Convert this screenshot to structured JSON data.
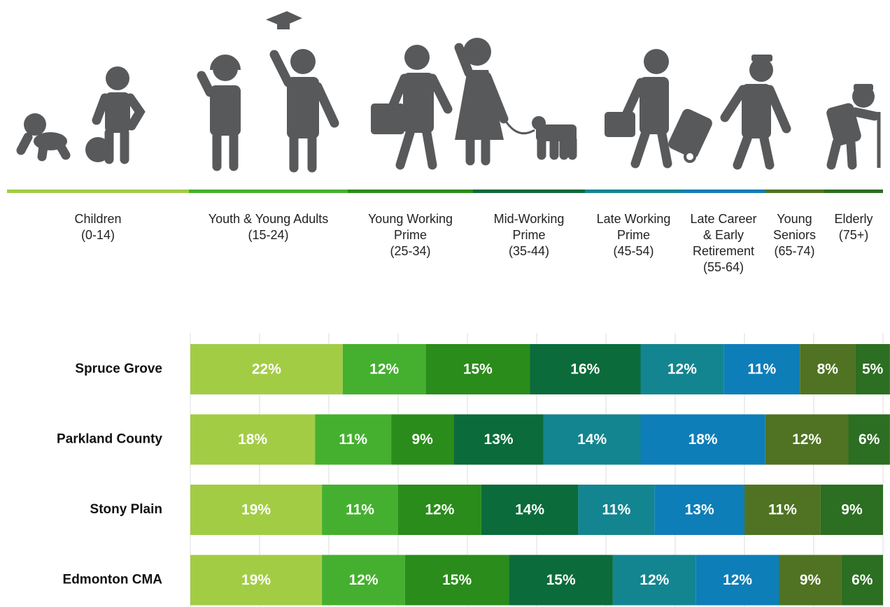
{
  "chart_data": {
    "type": "stacked_bar_horizontal",
    "categories": [
      "Spruce Grove",
      "Parkland County",
      "Stony Plain",
      "Edmonton CMA"
    ],
    "series": [
      {
        "name": "Children\n(0-14)",
        "color": "#a3cc45",
        "values": [
          22,
          18,
          19,
          19
        ],
        "value_labels": [
          "22%",
          "18%",
          "19%",
          "19%"
        ]
      },
      {
        "name": "Youth & Young Adults\n(15-24)",
        "color": "#45b02f",
        "values": [
          12,
          11,
          11,
          12
        ],
        "value_labels": [
          "12%",
          "11%",
          "11%",
          "12%"
        ]
      },
      {
        "name": "Young Working\nPrime\n(25-34)",
        "color": "#2a8c1a",
        "values": [
          15,
          9,
          12,
          15
        ],
        "value_labels": [
          "15%",
          "9%",
          "12%",
          "15%"
        ]
      },
      {
        "name": "Mid-Working\nPrime\n(35-44)",
        "color": "#0b6b3a",
        "values": [
          16,
          13,
          14,
          15
        ],
        "value_labels": [
          "16%",
          "13%",
          "14%",
          "15%"
        ]
      },
      {
        "name": "Late Working\nPrime\n(45-54)",
        "color": "#138590",
        "values": [
          12,
          14,
          11,
          12
        ],
        "value_labels": [
          "12%",
          "14%",
          "11%",
          "12%"
        ]
      },
      {
        "name": "Late Career\n& Early\nRetirement\n(55-64)",
        "color": "#0e7eb8",
        "values": [
          11,
          18,
          13,
          12
        ],
        "value_labels": [
          "11%",
          "18%",
          "13%",
          "12%"
        ]
      },
      {
        "name": "Young\nSeniors\n(65-74)",
        "color": "#4f7322",
        "values": [
          8,
          12,
          11,
          9
        ],
        "value_labels": [
          "8%",
          "12%",
          "11%",
          "9%"
        ]
      },
      {
        "name": "Elderly\n(75+)",
        "color": "#2c6e22",
        "values": [
          5,
          6,
          9,
          6
        ],
        "value_labels": [
          "5%",
          "6%",
          "9%",
          "6%"
        ]
      }
    ],
    "xlim": [
      0,
      100
    ],
    "xticks": [
      0,
      10,
      20,
      30,
      40,
      50,
      60,
      70,
      80,
      90,
      100
    ],
    "grid": true
  }
}
